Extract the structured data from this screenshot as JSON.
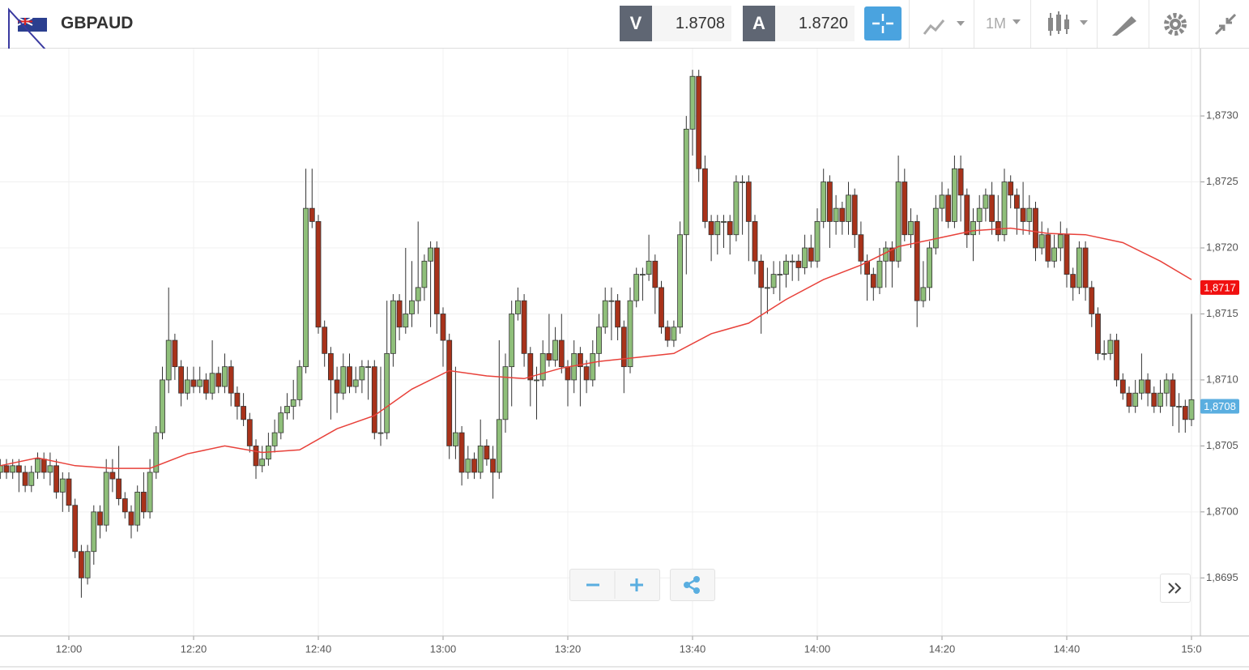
{
  "header": {
    "symbol": "GBPAUD",
    "sell_label": "V",
    "sell_price": "1.8708",
    "buy_label": "A",
    "buy_price": "1.8720",
    "timeframe": "1M"
  },
  "chart_data": {
    "type": "candlestick",
    "ylim": [
      1.86906,
      1.87351
    ],
    "yticks": [
      {
        "value": 1.8695,
        "label": "1,8695"
      },
      {
        "value": 1.87,
        "label": "1,8700"
      },
      {
        "value": 1.8705,
        "label": "1,8705"
      },
      {
        "value": 1.871,
        "label": "1,8710"
      },
      {
        "value": 1.8715,
        "label": "1,8715"
      },
      {
        "value": 1.872,
        "label": "1,8720"
      },
      {
        "value": 1.8725,
        "label": "1,8725"
      },
      {
        "value": 1.873,
        "label": "1,8730"
      }
    ],
    "xticks": [
      {
        "value": 11,
        "label": "12:00"
      },
      {
        "value": 31,
        "label": "12:20"
      },
      {
        "value": 51,
        "label": "12:40"
      },
      {
        "value": 71,
        "label": "13:00"
      },
      {
        "value": 91,
        "label": "13:20"
      },
      {
        "value": 111,
        "label": "13:40"
      },
      {
        "value": 131,
        "label": "14:00"
      },
      {
        "value": 151,
        "label": "14:20"
      },
      {
        "value": 171,
        "label": "14:40"
      },
      {
        "value": 191,
        "label": "15:0"
      }
    ],
    "grid": true,
    "up_color": "#8fbf7a",
    "down_color": "#a8321a",
    "candles": [
      [
        1.8703,
        1.8704,
        1.87025,
        1.87035
      ],
      [
        1.87035,
        1.8704,
        1.87025,
        1.8703
      ],
      [
        1.8703,
        1.8704,
        1.87025,
        1.87035
      ],
      [
        1.87035,
        1.8704,
        1.87015,
        1.8703
      ],
      [
        1.8703,
        1.87035,
        1.87015,
        1.8702
      ],
      [
        1.8702,
        1.87035,
        1.87015,
        1.8703
      ],
      [
        1.8703,
        1.87045,
        1.87025,
        1.8704
      ],
      [
        1.8704,
        1.87045,
        1.87025,
        1.8703
      ],
      [
        1.8703,
        1.87045,
        1.8702,
        1.87035
      ],
      [
        1.87035,
        1.8704,
        1.8701,
        1.87015
      ],
      [
        1.87015,
        1.8703,
        1.87,
        1.87025
      ],
      [
        1.87025,
        1.8703,
        1.87,
        1.87005
      ],
      [
        1.87005,
        1.8701,
        1.86965,
        1.8697
      ],
      [
        1.8697,
        1.86975,
        1.86935,
        1.8695
      ],
      [
        1.8695,
        1.86975,
        1.86945,
        1.8697
      ],
      [
        1.8697,
        1.87005,
        1.8696,
        1.87
      ],
      [
        1.87,
        1.87005,
        1.8698,
        1.8699
      ],
      [
        1.8699,
        1.8704,
        1.86985,
        1.8703
      ],
      [
        1.8703,
        1.8704,
        1.87015,
        1.87025
      ],
      [
        1.87025,
        1.8705,
        1.87005,
        1.8701
      ],
      [
        1.8701,
        1.87015,
        1.86995,
        1.87
      ],
      [
        1.87,
        1.87005,
        1.8698,
        1.8699
      ],
      [
        1.8699,
        1.8702,
        1.86985,
        1.87015
      ],
      [
        1.87015,
        1.8703,
        1.86995,
        1.87
      ],
      [
        1.87,
        1.8704,
        1.86995,
        1.8703
      ],
      [
        1.8703,
        1.87065,
        1.87025,
        1.8706
      ],
      [
        1.8706,
        1.8711,
        1.87055,
        1.871
      ],
      [
        1.871,
        1.8717,
        1.8709,
        1.8713
      ],
      [
        1.8713,
        1.87135,
        1.871,
        1.8711
      ],
      [
        1.8711,
        1.87115,
        1.8708,
        1.8709
      ],
      [
        1.8709,
        1.8711,
        1.87085,
        1.871
      ],
      [
        1.871,
        1.8711,
        1.8709,
        1.87095
      ],
      [
        1.87095,
        1.8711,
        1.8709,
        1.871
      ],
      [
        1.871,
        1.87105,
        1.87085,
        1.8709
      ],
      [
        1.8709,
        1.8713,
        1.87085,
        1.87105
      ],
      [
        1.87105,
        1.8711,
        1.8709,
        1.87095
      ],
      [
        1.87095,
        1.8712,
        1.8709,
        1.8711
      ],
      [
        1.8711,
        1.87115,
        1.8708,
        1.8709
      ],
      [
        1.8709,
        1.87095,
        1.8707,
        1.8708
      ],
      [
        1.8708,
        1.8709,
        1.87065,
        1.8707
      ],
      [
        1.8707,
        1.87075,
        1.87045,
        1.8705
      ],
      [
        1.8705,
        1.87055,
        1.87025,
        1.87035
      ],
      [
        1.87035,
        1.8705,
        1.8703,
        1.8704
      ],
      [
        1.8704,
        1.8706,
        1.87035,
        1.8705
      ],
      [
        1.8705,
        1.8707,
        1.87045,
        1.8706
      ],
      [
        1.8706,
        1.8708,
        1.87055,
        1.87075
      ],
      [
        1.87075,
        1.8709,
        1.8707,
        1.8708
      ],
      [
        1.8708,
        1.871,
        1.8707,
        1.87085
      ],
      [
        1.87085,
        1.87115,
        1.8708,
        1.8711
      ],
      [
        1.8711,
        1.8726,
        1.87105,
        1.8723
      ],
      [
        1.8723,
        1.8726,
        1.87215,
        1.8722
      ],
      [
        1.8722,
        1.87225,
        1.87135,
        1.8714
      ],
      [
        1.8714,
        1.87145,
        1.8711,
        1.8712
      ],
      [
        1.8712,
        1.87125,
        1.8707,
        1.871
      ],
      [
        1.871,
        1.8711,
        1.87075,
        1.8709
      ],
      [
        1.8709,
        1.8712,
        1.87085,
        1.8711
      ],
      [
        1.8711,
        1.8712,
        1.8709,
        1.87095
      ],
      [
        1.87095,
        1.8711,
        1.8709,
        1.871
      ],
      [
        1.871,
        1.87115,
        1.8709,
        1.8711
      ],
      [
        1.8711,
        1.87115,
        1.87085,
        1.8711
      ],
      [
        1.8711,
        1.87115,
        1.87055,
        1.8706
      ],
      [
        1.8706,
        1.8711,
        1.8705,
        1.8706
      ],
      [
        1.8706,
        1.8716,
        1.87055,
        1.8712
      ],
      [
        1.8712,
        1.87165,
        1.8711,
        1.8716
      ],
      [
        1.8716,
        1.87165,
        1.8713,
        1.8714
      ],
      [
        1.8714,
        1.872,
        1.87135,
        1.8715
      ],
      [
        1.8715,
        1.8719,
        1.8714,
        1.8716
      ],
      [
        1.8716,
        1.8722,
        1.8715,
        1.8717
      ],
      [
        1.8717,
        1.87195,
        1.8716,
        1.8719
      ],
      [
        1.8719,
        1.87205,
        1.8714,
        1.872
      ],
      [
        1.872,
        1.87205,
        1.87135,
        1.8715
      ],
      [
        1.8715,
        1.87155,
        1.8711,
        1.8713
      ],
      [
        1.8713,
        1.87135,
        1.8704,
        1.8705
      ],
      [
        1.8705,
        1.8711,
        1.8704,
        1.8706
      ],
      [
        1.8706,
        1.87065,
        1.8702,
        1.8703
      ],
      [
        1.8703,
        1.8705,
        1.87025,
        1.8704
      ],
      [
        1.8704,
        1.87045,
        1.87025,
        1.8703
      ],
      [
        1.8703,
        1.8707,
        1.87025,
        1.8705
      ],
      [
        1.8705,
        1.87055,
        1.87035,
        1.8704
      ],
      [
        1.8704,
        1.8705,
        1.8701,
        1.8703
      ],
      [
        1.8703,
        1.8713,
        1.87025,
        1.8707
      ],
      [
        1.8707,
        1.8712,
        1.8706,
        1.8711
      ],
      [
        1.8711,
        1.8716,
        1.8708,
        1.8715
      ],
      [
        1.8715,
        1.8717,
        1.87145,
        1.8716
      ],
      [
        1.8716,
        1.87165,
        1.8711,
        1.8712
      ],
      [
        1.8712,
        1.87125,
        1.8708,
        1.871
      ],
      [
        1.871,
        1.8711,
        1.8707,
        1.871
      ],
      [
        1.871,
        1.8713,
        1.87095,
        1.8712
      ],
      [
        1.8712,
        1.8715,
        1.8711,
        1.87115
      ],
      [
        1.87115,
        1.8714,
        1.8711,
        1.8713
      ],
      [
        1.8713,
        1.8715,
        1.87105,
        1.8711
      ],
      [
        1.8711,
        1.87115,
        1.8708,
        1.871
      ],
      [
        1.871,
        1.8713,
        1.8709,
        1.8712
      ],
      [
        1.8712,
        1.87125,
        1.8708,
        1.8711
      ],
      [
        1.8711,
        1.87115,
        1.8709,
        1.871
      ],
      [
        1.871,
        1.8713,
        1.87095,
        1.8712
      ],
      [
        1.8712,
        1.8715,
        1.8711,
        1.8714
      ],
      [
        1.8714,
        1.8717,
        1.87135,
        1.8716
      ],
      [
        1.8716,
        1.8717,
        1.8713,
        1.8716
      ],
      [
        1.8716,
        1.87165,
        1.8713,
        1.8714
      ],
      [
        1.8714,
        1.87145,
        1.8709,
        1.8711
      ],
      [
        1.8711,
        1.8717,
        1.87105,
        1.8716
      ],
      [
        1.8716,
        1.87185,
        1.87155,
        1.8718
      ],
      [
        1.8718,
        1.87185,
        1.8716,
        1.8718
      ],
      [
        1.8718,
        1.8721,
        1.87175,
        1.8719
      ],
      [
        1.8719,
        1.87195,
        1.8715,
        1.8717
      ],
      [
        1.8717,
        1.87175,
        1.87135,
        1.8714
      ],
      [
        1.8714,
        1.87145,
        1.87125,
        1.8713
      ],
      [
        1.8713,
        1.87145,
        1.87125,
        1.8714
      ],
      [
        1.8714,
        1.8722,
        1.87135,
        1.8721
      ],
      [
        1.8721,
        1.873,
        1.8718,
        1.8729
      ],
      [
        1.8729,
        1.87335,
        1.8727,
        1.8733
      ],
      [
        1.8733,
        1.87335,
        1.8725,
        1.8726
      ],
      [
        1.8726,
        1.8727,
        1.87215,
        1.8722
      ],
      [
        1.8722,
        1.87225,
        1.8719,
        1.8721
      ],
      [
        1.8721,
        1.87225,
        1.87195,
        1.8722
      ],
      [
        1.8722,
        1.87225,
        1.872,
        1.8722
      ],
      [
        1.8722,
        1.87225,
        1.87195,
        1.8721
      ],
      [
        1.8721,
        1.87255,
        1.87205,
        1.8725
      ],
      [
        1.8725,
        1.87255,
        1.8721,
        1.8725
      ],
      [
        1.8725,
        1.87255,
        1.8719,
        1.8722
      ],
      [
        1.8722,
        1.87225,
        1.8718,
        1.8719
      ],
      [
        1.8719,
        1.87195,
        1.87135,
        1.8717
      ],
      [
        1.8717,
        1.87185,
        1.8715,
        1.8717
      ],
      [
        1.8717,
        1.8719,
        1.87165,
        1.8718
      ],
      [
        1.8718,
        1.8719,
        1.8716,
        1.8718
      ],
      [
        1.8718,
        1.87195,
        1.8717,
        1.8719
      ],
      [
        1.8719,
        1.87195,
        1.87175,
        1.8719
      ],
      [
        1.8719,
        1.87195,
        1.87175,
        1.87185
      ],
      [
        1.87185,
        1.8721,
        1.8718,
        1.872
      ],
      [
        1.872,
        1.8721,
        1.87185,
        1.8719
      ],
      [
        1.8719,
        1.8723,
        1.87185,
        1.8722
      ],
      [
        1.8722,
        1.8726,
        1.87215,
        1.8725
      ],
      [
        1.8725,
        1.87255,
        1.872,
        1.8722
      ],
      [
        1.8722,
        1.8724,
        1.8721,
        1.8723
      ],
      [
        1.8723,
        1.87235,
        1.8721,
        1.8722
      ],
      [
        1.8722,
        1.8725,
        1.8721,
        1.8724
      ],
      [
        1.8724,
        1.87245,
        1.872,
        1.8721
      ],
      [
        1.8721,
        1.8722,
        1.8718,
        1.8719
      ],
      [
        1.8719,
        1.87195,
        1.8716,
        1.8718
      ],
      [
        1.8718,
        1.87185,
        1.8716,
        1.8717
      ],
      [
        1.8717,
        1.872,
        1.87165,
        1.8719
      ],
      [
        1.8719,
        1.87205,
        1.8717,
        1.872
      ],
      [
        1.872,
        1.87205,
        1.8717,
        1.8719
      ],
      [
        1.8719,
        1.8727,
        1.87185,
        1.8725
      ],
      [
        1.8725,
        1.8726,
        1.87205,
        1.8721
      ],
      [
        1.8721,
        1.8723,
        1.872,
        1.8722
      ],
      [
        1.8722,
        1.87225,
        1.8714,
        1.8716
      ],
      [
        1.8716,
        1.8719,
        1.87155,
        1.8717
      ],
      [
        1.8717,
        1.87205,
        1.8716,
        1.872
      ],
      [
        1.872,
        1.8724,
        1.87195,
        1.8723
      ],
      [
        1.8723,
        1.8725,
        1.8722,
        1.8724
      ],
      [
        1.8724,
        1.87245,
        1.87215,
        1.8722
      ],
      [
        1.8722,
        1.8727,
        1.87215,
        1.8726
      ],
      [
        1.8726,
        1.8727,
        1.8722,
        1.8724
      ],
      [
        1.8724,
        1.87245,
        1.872,
        1.8721
      ],
      [
        1.8721,
        1.8723,
        1.8719,
        1.8722
      ],
      [
        1.8722,
        1.8724,
        1.8721,
        1.8723
      ],
      [
        1.8723,
        1.87245,
        1.8722,
        1.8724
      ],
      [
        1.8724,
        1.8725,
        1.8721,
        1.8722
      ],
      [
        1.8722,
        1.8724,
        1.87205,
        1.8721
      ],
      [
        1.8721,
        1.8726,
        1.87205,
        1.8725
      ],
      [
        1.8725,
        1.87255,
        1.8723,
        1.8724
      ],
      [
        1.8724,
        1.87245,
        1.8721,
        1.8723
      ],
      [
        1.8723,
        1.8725,
        1.8721,
        1.8722
      ],
      [
        1.8722,
        1.8724,
        1.8721,
        1.8723
      ],
      [
        1.8723,
        1.87235,
        1.8719,
        1.872
      ],
      [
        1.872,
        1.8722,
        1.87195,
        1.8721
      ],
      [
        1.8721,
        1.87215,
        1.87185,
        1.8719
      ],
      [
        1.8719,
        1.8721,
        1.87185,
        1.872
      ],
      [
        1.872,
        1.8722,
        1.8719,
        1.8721
      ],
      [
        1.8721,
        1.87215,
        1.8717,
        1.8718
      ],
      [
        1.8718,
        1.87185,
        1.8716,
        1.8717
      ],
      [
        1.8717,
        1.87205,
        1.87165,
        1.872
      ],
      [
        1.872,
        1.87205,
        1.8716,
        1.8717
      ],
      [
        1.8717,
        1.87175,
        1.8714,
        1.8715
      ],
      [
        1.8715,
        1.87155,
        1.87115,
        1.8712
      ],
      [
        1.8712,
        1.8713,
        1.87115,
        1.8712
      ],
      [
        1.8712,
        1.87135,
        1.87115,
        1.8713
      ],
      [
        1.8713,
        1.87135,
        1.87095,
        1.871
      ],
      [
        1.871,
        1.87105,
        1.87085,
        1.8709
      ],
      [
        1.8709,
        1.87095,
        1.87075,
        1.8708
      ],
      [
        1.8708,
        1.871,
        1.87075,
        1.8709
      ],
      [
        1.8709,
        1.8712,
        1.87085,
        1.871
      ],
      [
        1.871,
        1.87105,
        1.8708,
        1.8709
      ],
      [
        1.8709,
        1.87095,
        1.87075,
        1.8708
      ],
      [
        1.8708,
        1.871,
        1.87075,
        1.8709
      ],
      [
        1.8709,
        1.87105,
        1.8708,
        1.871
      ],
      [
        1.871,
        1.87105,
        1.87065,
        1.8708
      ],
      [
        1.8708,
        1.8709,
        1.8706,
        1.8708
      ],
      [
        1.8708,
        1.87085,
        1.8706,
        1.8707
      ],
      [
        1.8707,
        1.8715,
        1.87065,
        1.87085
      ]
    ],
    "moving_average": {
      "color": "#e8413a",
      "x": [
        0,
        6,
        12,
        18,
        24,
        30,
        36,
        42,
        48,
        54,
        60,
        66,
        72,
        78,
        84,
        90,
        96,
        102,
        108,
        114,
        120,
        126,
        132,
        138,
        144,
        150,
        156,
        162,
        168,
        174,
        180,
        186,
        191
      ],
      "values": [
        1.87035,
        1.87041,
        1.87035,
        1.87033,
        1.87033,
        1.87044,
        1.8705,
        1.87045,
        1.87047,
        1.87063,
        1.87073,
        1.87093,
        1.87107,
        1.87103,
        1.87101,
        1.87109,
        1.87114,
        1.87117,
        1.8712,
        1.87135,
        1.87143,
        1.87161,
        1.87176,
        1.87187,
        1.87201,
        1.87207,
        1.87213,
        1.87215,
        1.87211,
        1.8721,
        1.87204,
        1.8719,
        1.87176
      ]
    },
    "price_tags": [
      {
        "value": 1.8717,
        "label": "1,8717",
        "color": "#f01010"
      },
      {
        "value": 1.8708,
        "label": "1,8708",
        "color": "#5aaee0"
      }
    ]
  }
}
